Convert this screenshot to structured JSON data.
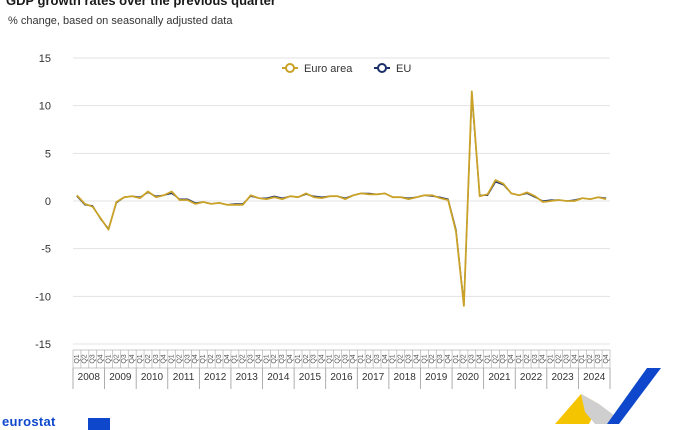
{
  "header": {
    "title": "GDP growth rates over the previous quarter",
    "subtitle": "% change, based on seasonally adjusted data"
  },
  "footer": {
    "logo_text": "eurostat"
  },
  "colors": {
    "euro_area": "#c9a227",
    "eu": "#1b2f6b",
    "grid": "#e3e3e3",
    "axis": "#7a7a7a"
  },
  "chart_data": {
    "type": "line",
    "title": "GDP growth rates over the previous quarter",
    "subtitle": "% change, based on seasonally adjusted data",
    "xlabel": "",
    "ylabel": "",
    "ylim": [
      -15,
      15
    ],
    "yticks": [
      15,
      10,
      5,
      0,
      -5,
      -10,
      -15
    ],
    "grid": true,
    "legend": "top-center",
    "quarter_labels": [
      "Q1",
      "Q2",
      "Q3",
      "Q4"
    ],
    "years": [
      "2008",
      "2009",
      "2010",
      "2011",
      "2012",
      "2013",
      "2014",
      "2015",
      "2016",
      "2017",
      "2018",
      "2019",
      "2020",
      "2021",
      "2022",
      "2023",
      "2024"
    ],
    "series": [
      {
        "name": "Euro area",
        "values": [
          0.6,
          -0.3,
          -0.6,
          -1.8,
          -3.0,
          -0.1,
          0.4,
          0.5,
          0.3,
          1.0,
          0.4,
          0.6,
          1.0,
          0.1,
          0.1,
          -0.3,
          -0.1,
          -0.3,
          -0.2,
          -0.4,
          -0.4,
          -0.4,
          0.6,
          0.3,
          0.2,
          0.4,
          0.2,
          0.5,
          0.4,
          0.8,
          0.4,
          0.3,
          0.5,
          0.5,
          0.2,
          0.6,
          0.8,
          0.7,
          0.7,
          0.8,
          0.4,
          0.4,
          0.2,
          0.4,
          0.6,
          0.6,
          0.3,
          0.1,
          -3.2,
          -11.0,
          11.5,
          0.5,
          0.7,
          2.2,
          1.8,
          0.8,
          0.6,
          0.9,
          0.5,
          -0.1,
          0.0,
          0.1,
          0.0,
          0.0,
          0.3,
          0.2,
          0.4,
          0.2
        ]
      },
      {
        "name": "EU",
        "values": [
          0.5,
          -0.4,
          -0.5,
          -1.9,
          -2.9,
          -0.2,
          0.4,
          0.5,
          0.4,
          0.9,
          0.5,
          0.6,
          0.8,
          0.2,
          0.2,
          -0.2,
          -0.1,
          -0.3,
          -0.2,
          -0.4,
          -0.3,
          -0.3,
          0.5,
          0.3,
          0.3,
          0.5,
          0.3,
          0.5,
          0.4,
          0.7,
          0.5,
          0.4,
          0.5,
          0.5,
          0.3,
          0.6,
          0.8,
          0.8,
          0.7,
          0.8,
          0.4,
          0.4,
          0.3,
          0.4,
          0.6,
          0.5,
          0.4,
          0.2,
          -3.0,
          -10.8,
          11.0,
          0.6,
          0.6,
          2.0,
          1.7,
          0.8,
          0.6,
          0.8,
          0.4,
          0.0,
          0.1,
          0.1,
          0.0,
          0.1,
          0.3,
          0.2,
          0.4,
          0.3
        ]
      }
    ]
  }
}
